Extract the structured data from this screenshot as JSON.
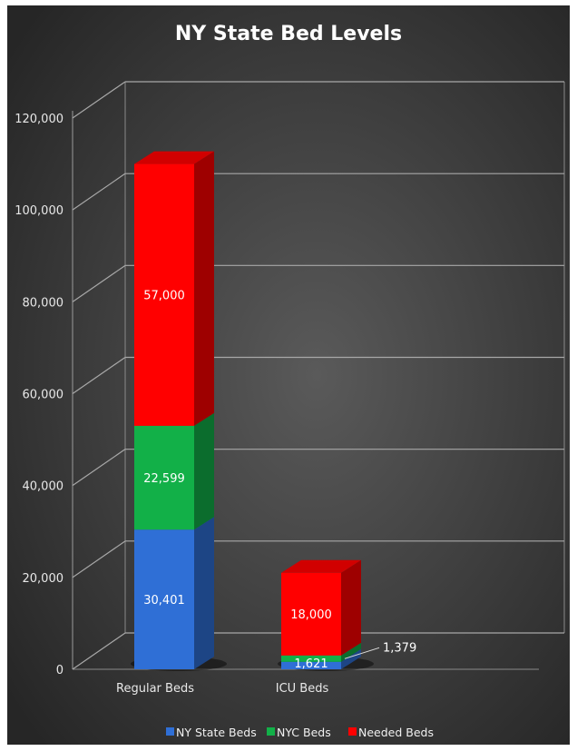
{
  "chart_data": {
    "type": "bar",
    "stacked": true,
    "three_d": true,
    "title": "NY State Bed Levels",
    "xlabel": "",
    "ylabel": "",
    "categories": [
      "Regular  Beds",
      "ICU Beds"
    ],
    "series": [
      {
        "name": "NY State Beds",
        "values": [
          30401,
          1621
        ],
        "labels": [
          "30,401",
          "1,621"
        ],
        "color": "#2f6fd6"
      },
      {
        "name": "NYC Beds",
        "values": [
          22599,
          1379
        ],
        "labels": [
          "22,599",
          "1,379"
        ],
        "color": "#12b048"
      },
      {
        "name": "Needed Beds",
        "values": [
          57000,
          18000
        ],
        "labels": [
          "57,000",
          "18,000"
        ],
        "color": "#ff0000"
      }
    ],
    "ylim": [
      0,
      120000
    ],
    "yticks": [
      0,
      20000,
      40000,
      60000,
      80000,
      100000,
      120000
    ],
    "yticklabels": [
      "0",
      "20,000",
      "40,000",
      "60,000",
      "80,000",
      "100,000",
      "120,000"
    ],
    "grid": true,
    "legend_position": "bottom",
    "background": "#2e2e2e"
  }
}
